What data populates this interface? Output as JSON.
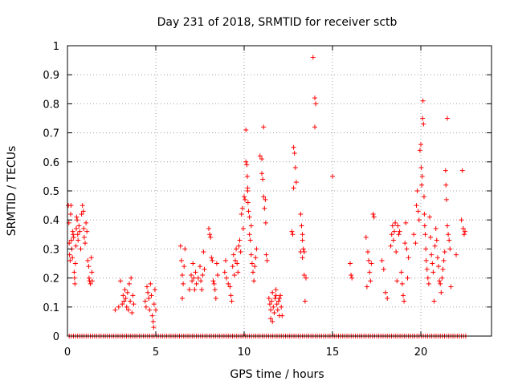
{
  "chart_data": {
    "type": "scatter",
    "title": "Day 231 of 2018, SRMTID for receiver sctb",
    "xlabel": "GPS time / hours",
    "ylabel": "SRMTID / TECUs",
    "xlim": [
      0,
      24
    ],
    "ylim": [
      0,
      1
    ],
    "xticks": [
      0,
      5,
      10,
      15,
      20
    ],
    "xtick_labels": [
      "0",
      "5",
      "10",
      "15",
      "20"
    ],
    "yticks": [
      0,
      0.1,
      0.2,
      0.3,
      0.4,
      0.5,
      0.6,
      0.7,
      0.8,
      0.9,
      1
    ],
    "ytick_labels": [
      "0",
      "0.1",
      "0.2",
      "0.3",
      "0.4",
      "0.5",
      "0.6",
      "0.7",
      "0.8",
      "0.9",
      "1"
    ],
    "grid": true,
    "marker": "+",
    "color": "#ff0000",
    "zero_baseline": {
      "x_start": 0.1,
      "x_end": 22.6,
      "step": 0.12,
      "value": 0
    },
    "series": [
      {
        "name": "SRMTID",
        "points": [
          [
            0.05,
            0.45
          ],
          [
            0.08,
            0.39
          ],
          [
            0.1,
            0.32
          ],
          [
            0.12,
            0.28
          ],
          [
            0.15,
            0.26
          ],
          [
            0.18,
            0.42
          ],
          [
            0.2,
            0.45
          ],
          [
            0.22,
            0.33
          ],
          [
            0.25,
            0.3
          ],
          [
            0.28,
            0.27
          ],
          [
            0.3,
            0.36
          ],
          [
            0.32,
            0.35
          ],
          [
            0.35,
            0.34
          ],
          [
            0.38,
            0.22
          ],
          [
            0.4,
            0.2
          ],
          [
            0.42,
            0.18
          ],
          [
            0.45,
            0.25
          ],
          [
            0.48,
            0.31
          ],
          [
            0.5,
            0.37
          ],
          [
            0.52,
            0.41
          ],
          [
            0.55,
            0.4
          ],
          [
            0.58,
            0.35
          ],
          [
            0.6,
            0.33
          ],
          [
            0.65,
            0.38
          ],
          [
            0.7,
            0.36
          ],
          [
            0.75,
            0.3
          ],
          [
            0.8,
            0.42
          ],
          [
            0.85,
            0.45
          ],
          [
            0.9,
            0.43
          ],
          [
            0.92,
            0.37
          ],
          [
            0.95,
            0.34
          ],
          [
            1.0,
            0.32
          ],
          [
            1.05,
            0.39
          ],
          [
            1.1,
            0.36
          ],
          [
            1.15,
            0.26
          ],
          [
            1.2,
            0.24
          ],
          [
            1.22,
            0.2
          ],
          [
            1.25,
            0.19
          ],
          [
            1.3,
            0.18
          ],
          [
            1.35,
            0.27
          ],
          [
            1.38,
            0.22
          ],
          [
            1.4,
            0.19
          ],
          [
            2.7,
            0.09
          ],
          [
            2.9,
            0.1
          ],
          [
            3.0,
            0.19
          ],
          [
            3.1,
            0.11
          ],
          [
            3.15,
            0.14
          ],
          [
            3.2,
            0.12
          ],
          [
            3.25,
            0.16
          ],
          [
            3.3,
            0.13
          ],
          [
            3.35,
            0.1
          ],
          [
            3.4,
            0.15
          ],
          [
            3.45,
            0.09
          ],
          [
            3.5,
            0.18
          ],
          [
            3.55,
            0.12
          ],
          [
            3.6,
            0.2
          ],
          [
            3.65,
            0.08
          ],
          [
            3.7,
            0.14
          ],
          [
            3.75,
            0.11
          ],
          [
            4.4,
            0.12
          ],
          [
            4.45,
            0.1
          ],
          [
            4.5,
            0.17
          ],
          [
            4.55,
            0.15
          ],
          [
            4.6,
            0.13
          ],
          [
            4.65,
            0.09
          ],
          [
            4.7,
            0.18
          ],
          [
            4.75,
            0.14
          ],
          [
            4.8,
            0.07
          ],
          [
            4.85,
            0.05
          ],
          [
            4.9,
            0.11
          ],
          [
            4.95,
            0.16
          ],
          [
            5.0,
            0.09
          ],
          [
            4.88,
            0.03
          ],
          [
            6.4,
            0.31
          ],
          [
            6.45,
            0.26
          ],
          [
            6.5,
            0.21
          ],
          [
            6.55,
            0.18
          ],
          [
            6.6,
            0.24
          ],
          [
            6.65,
            0.3
          ],
          [
            6.5,
            0.13
          ],
          [
            6.9,
            0.16
          ],
          [
            7.0,
            0.21
          ],
          [
            7.05,
            0.19
          ],
          [
            7.1,
            0.25
          ],
          [
            7.15,
            0.2
          ],
          [
            7.2,
            0.16
          ],
          [
            7.25,
            0.22
          ],
          [
            7.3,
            0.18
          ],
          [
            7.4,
            0.2
          ],
          [
            7.5,
            0.24
          ],
          [
            7.55,
            0.19
          ],
          [
            7.6,
            0.16
          ],
          [
            7.65,
            0.21
          ],
          [
            7.7,
            0.29
          ],
          [
            7.75,
            0.23
          ],
          [
            8.0,
            0.37
          ],
          [
            8.05,
            0.35
          ],
          [
            8.1,
            0.34
          ],
          [
            8.15,
            0.27
          ],
          [
            8.2,
            0.26
          ],
          [
            8.25,
            0.19
          ],
          [
            8.3,
            0.18
          ],
          [
            8.35,
            0.16
          ],
          [
            8.4,
            0.13
          ],
          [
            8.45,
            0.25
          ],
          [
            8.5,
            0.21
          ],
          [
            8.9,
            0.22
          ],
          [
            8.95,
            0.26
          ],
          [
            9.0,
            0.2
          ],
          [
            9.1,
            0.18
          ],
          [
            9.2,
            0.17
          ],
          [
            9.25,
            0.14
          ],
          [
            9.3,
            0.12
          ],
          [
            9.35,
            0.24
          ],
          [
            9.4,
            0.28
          ],
          [
            9.45,
            0.21
          ],
          [
            9.5,
            0.26
          ],
          [
            9.55,
            0.3
          ],
          [
            9.6,
            0.25
          ],
          [
            9.65,
            0.22
          ],
          [
            9.7,
            0.31
          ],
          [
            9.75,
            0.33
          ],
          [
            9.8,
            0.29
          ],
          [
            9.85,
            0.42
          ],
          [
            9.9,
            0.44
          ],
          [
            9.95,
            0.37
          ],
          [
            10.0,
            0.48
          ],
          [
            10.05,
            0.47
          ],
          [
            10.1,
            0.6
          ],
          [
            10.15,
            0.59
          ],
          [
            10.18,
            0.55
          ],
          [
            10.2,
            0.5
          ],
          [
            10.22,
            0.46
          ],
          [
            10.25,
            0.43
          ],
          [
            10.3,
            0.35
          ],
          [
            10.35,
            0.33
          ],
          [
            10.4,
            0.28
          ],
          [
            10.45,
            0.25
          ],
          [
            10.5,
            0.22
          ],
          [
            10.55,
            0.19
          ],
          [
            10.6,
            0.24
          ],
          [
            10.65,
            0.27
          ],
          [
            10.7,
            0.3
          ],
          [
            10.1,
            0.71
          ],
          [
            10.3,
            0.41
          ],
          [
            10.4,
            0.38
          ],
          [
            10.2,
            0.51
          ],
          [
            10.9,
            0.62
          ],
          [
            11.0,
            0.56
          ],
          [
            11.05,
            0.54
          ],
          [
            11.1,
            0.48
          ],
          [
            11.15,
            0.44
          ],
          [
            11.2,
            0.47
          ],
          [
            11.22,
            0.39
          ],
          [
            11.25,
            0.28
          ],
          [
            11.3,
            0.26
          ],
          [
            11.1,
            0.72
          ],
          [
            11.0,
            0.61
          ],
          [
            11.4,
            0.13
          ],
          [
            11.45,
            0.11
          ],
          [
            11.5,
            0.09
          ],
          [
            11.55,
            0.12
          ],
          [
            11.6,
            0.15
          ],
          [
            11.65,
            0.1
          ],
          [
            11.7,
            0.08
          ],
          [
            11.75,
            0.13
          ],
          [
            11.8,
            0.14
          ],
          [
            11.85,
            0.11
          ],
          [
            11.9,
            0.09
          ],
          [
            11.95,
            0.12
          ],
          [
            12.0,
            0.13
          ],
          [
            12.05,
            0.14
          ],
          [
            12.1,
            0.1
          ],
          [
            12.15,
            0.07
          ],
          [
            11.5,
            0.06
          ],
          [
            11.6,
            0.05
          ],
          [
            11.8,
            0.16
          ],
          [
            12.0,
            0.07
          ],
          [
            12.7,
            0.36
          ],
          [
            12.75,
            0.35
          ],
          [
            12.8,
            0.65
          ],
          [
            12.85,
            0.63
          ],
          [
            12.9,
            0.58
          ],
          [
            12.95,
            0.53
          ],
          [
            12.8,
            0.51
          ],
          [
            13.2,
            0.42
          ],
          [
            13.25,
            0.38
          ],
          [
            13.3,
            0.35
          ],
          [
            13.35,
            0.3
          ],
          [
            13.4,
            0.29
          ],
          [
            13.3,
            0.27
          ],
          [
            13.4,
            0.21
          ],
          [
            13.5,
            0.2
          ],
          [
            13.45,
            0.12
          ],
          [
            13.2,
            0.29
          ],
          [
            13.3,
            0.33
          ],
          [
            13.9,
            0.96
          ],
          [
            14.0,
            0.82
          ],
          [
            14.05,
            0.8
          ],
          [
            14.0,
            0.72
          ],
          [
            15.0,
            0.55
          ],
          [
            16.0,
            0.25
          ],
          [
            16.05,
            0.21
          ],
          [
            16.1,
            0.2
          ],
          [
            16.9,
            0.34
          ],
          [
            17.0,
            0.29
          ],
          [
            17.05,
            0.26
          ],
          [
            17.1,
            0.22
          ],
          [
            17.15,
            0.19
          ],
          [
            17.2,
            0.25
          ],
          [
            17.3,
            0.42
          ],
          [
            17.35,
            0.41
          ],
          [
            16.95,
            0.17
          ],
          [
            17.8,
            0.26
          ],
          [
            17.9,
            0.23
          ],
          [
            18.0,
            0.15
          ],
          [
            18.1,
            0.13
          ],
          [
            18.3,
            0.31
          ],
          [
            18.35,
            0.35
          ],
          [
            18.4,
            0.38
          ],
          [
            18.45,
            0.33
          ],
          [
            18.5,
            0.36
          ],
          [
            18.55,
            0.39
          ],
          [
            18.6,
            0.29
          ],
          [
            18.65,
            0.19
          ],
          [
            18.7,
            0.38
          ],
          [
            18.75,
            0.35
          ],
          [
            18.8,
            0.36
          ],
          [
            18.9,
            0.22
          ],
          [
            18.95,
            0.18
          ],
          [
            19.0,
            0.14
          ],
          [
            19.05,
            0.12
          ],
          [
            19.1,
            0.32
          ],
          [
            19.15,
            0.39
          ],
          [
            19.2,
            0.3
          ],
          [
            19.25,
            0.2
          ],
          [
            19.3,
            0.27
          ],
          [
            19.6,
            0.35
          ],
          [
            19.7,
            0.32
          ],
          [
            19.75,
            0.45
          ],
          [
            19.8,
            0.5
          ],
          [
            19.85,
            0.43
          ],
          [
            19.9,
            0.4
          ],
          [
            19.95,
            0.64
          ],
          [
            20.0,
            0.66
          ],
          [
            20.02,
            0.58
          ],
          [
            20.05,
            0.52
          ],
          [
            20.08,
            0.55
          ],
          [
            20.1,
            0.75
          ],
          [
            20.12,
            0.81
          ],
          [
            20.15,
            0.73
          ],
          [
            20.18,
            0.48
          ],
          [
            20.2,
            0.42
          ],
          [
            20.22,
            0.38
          ],
          [
            20.25,
            0.35
          ],
          [
            20.28,
            0.3
          ],
          [
            20.3,
            0.26
          ],
          [
            20.35,
            0.23
          ],
          [
            20.4,
            0.2
          ],
          [
            20.45,
            0.18
          ],
          [
            20.5,
            0.41
          ],
          [
            20.55,
            0.34
          ],
          [
            20.6,
            0.28
          ],
          [
            20.65,
            0.25
          ],
          [
            20.7,
            0.22
          ],
          [
            20.75,
            0.12
          ],
          [
            20.8,
            0.31
          ],
          [
            20.85,
            0.37
          ],
          [
            20.9,
            0.33
          ],
          [
            20.95,
            0.27
          ],
          [
            21.0,
            0.24
          ],
          [
            21.05,
            0.19
          ],
          [
            21.1,
            0.18
          ],
          [
            21.15,
            0.15
          ],
          [
            21.2,
            0.2
          ],
          [
            21.25,
            0.23
          ],
          [
            21.3,
            0.26
          ],
          [
            21.35,
            0.29
          ],
          [
            21.4,
            0.57
          ],
          [
            21.42,
            0.52
          ],
          [
            21.45,
            0.47
          ],
          [
            21.5,
            0.38
          ],
          [
            21.55,
            0.35
          ],
          [
            21.6,
            0.33
          ],
          [
            21.65,
            0.3
          ],
          [
            21.5,
            0.75
          ],
          [
            21.7,
            0.17
          ],
          [
            22.0,
            0.28
          ],
          [
            22.3,
            0.4
          ],
          [
            22.35,
            0.57
          ],
          [
            22.4,
            0.37
          ],
          [
            22.45,
            0.35
          ],
          [
            22.5,
            0.36
          ]
        ]
      }
    ]
  }
}
